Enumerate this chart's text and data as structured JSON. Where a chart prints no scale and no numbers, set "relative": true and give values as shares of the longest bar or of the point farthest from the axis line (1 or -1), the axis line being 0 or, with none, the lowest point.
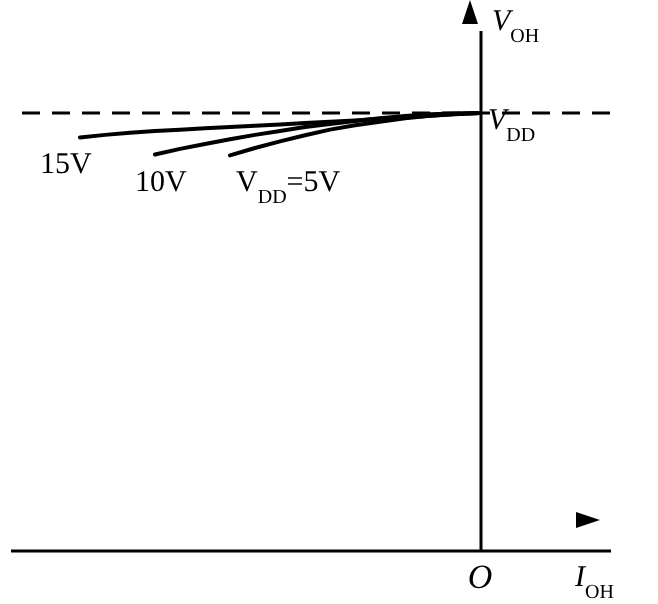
{
  "chart_data": {
    "type": "line",
    "relative": true,
    "xlabel": "I$_{OH}$",
    "ylabel": "V$_{OH}$",
    "line_style": "solid",
    "categories": [
      null,
      null,
      null,
      null,
      null,
      null,
      null,
      null,
      null,
      null,
      null,
      null,
      null,
      null,
      null,
      null,
      null
    ],
    "series": [
      {
        "name": "15V",
        "color": "#000000",
        "values": [
          0.944,
          0.95,
          0.955,
          0.959,
          0.962,
          0.965,
          0.968,
          0.971,
          0.974,
          0.977,
          0.98,
          0.983,
          0.987,
          0.99,
          0.994,
          0.997,
          1
        ]
      },
      {
        "name": "10V",
        "color": "#000000",
        "values": [
          null,
          null,
          null,
          0.905,
          0.918,
          0.929,
          0.94,
          0.95,
          0.959,
          0.968,
          0.975,
          0.982,
          0.988,
          0.993,
          0.997,
          0.999,
          1
        ]
      },
      {
        "name": "V$_{DD}$=5V",
        "color": "#000000",
        "values": [
          null,
          null,
          null,
          null,
          null,
          null,
          0.903,
          0.92,
          0.935,
          0.949,
          0.962,
          0.972,
          0.98,
          0.988,
          0.994,
          0.998,
          1
        ]
      }
    ],
    "ref_lines": [
      {
        "axis": "y",
        "value": 1,
        "label": "V$_{DD}$",
        "line_style": "dashed",
        "color": "#000000"
      }
    ],
    "annotations": [
      "O"
    ]
  }
}
